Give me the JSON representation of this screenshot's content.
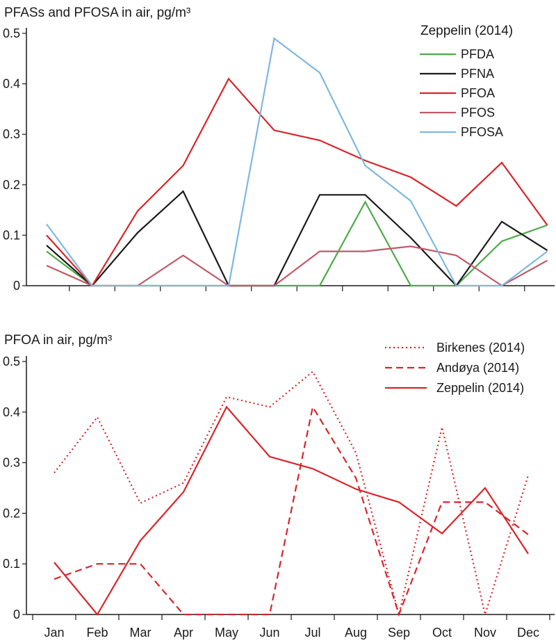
{
  "chart_data": [
    {
      "type": "line",
      "title": "PFASs and PFOSA in air, pg/m³",
      "legend_title": "Zeppelin (2014)",
      "legend_position": "top-right",
      "categories": [
        "Jan",
        "Feb",
        "Mar",
        "Apr",
        "May",
        "Jun",
        "Jul",
        "Aug",
        "Sep",
        "Oct",
        "Nov",
        "Dec"
      ],
      "ylim": [
        0,
        0.5
      ],
      "yticks": [
        "0",
        "0.1",
        "0.2",
        "0.3",
        "0.4",
        "0.5"
      ],
      "show_x_tick_labels": false,
      "grid": false,
      "series": [
        {
          "name": "PFDA",
          "color": "#4cab48",
          "dash": "solid",
          "values": [
            0.068,
            0,
            0,
            0,
            0,
            0,
            0,
            0.166,
            0,
            0,
            0.088,
            0.12
          ]
        },
        {
          "name": "PFNA",
          "color": "#1a1a1a",
          "dash": "solid",
          "values": [
            0.08,
            0,
            0.105,
            0.187,
            0,
            0,
            0.18,
            0.18,
            0.095,
            0,
            0.127,
            0.07
          ]
        },
        {
          "name": "PFOA",
          "color": "#d7252a",
          "dash": "solid",
          "values": [
            0.1,
            0,
            0.148,
            0.238,
            0.41,
            0.308,
            0.288,
            0.248,
            0.215,
            0.158,
            0.244,
            0.12
          ]
        },
        {
          "name": "PFOS",
          "color": "#c05a68",
          "dash": "solid",
          "values": [
            0.04,
            0,
            0,
            0.06,
            0,
            0,
            0.068,
            0.068,
            0.078,
            0.06,
            0,
            0.05
          ]
        },
        {
          "name": "PFOSA",
          "color": "#7db8e0",
          "dash": "solid",
          "values": [
            0.122,
            0,
            0,
            0,
            0,
            0.49,
            0.422,
            0.238,
            0.168,
            0,
            0,
            0.068
          ]
        }
      ]
    },
    {
      "type": "line",
      "title": "PFOA in air, pg/m³",
      "legend_title": "",
      "legend_position": "top-right",
      "categories": [
        "Jan",
        "Feb",
        "Mar",
        "Apr",
        "May",
        "Jun",
        "Jul",
        "Aug",
        "Sep",
        "Oct",
        "Nov",
        "Dec"
      ],
      "ylim": [
        0,
        0.5
      ],
      "yticks": [
        "0",
        "0.1",
        "0.2",
        "0.3",
        "0.4",
        "0.5"
      ],
      "show_x_tick_labels": true,
      "grid": false,
      "series": [
        {
          "name": "Birkenes (2014)",
          "color": "#d7252a",
          "dash": "dotted",
          "values": [
            0.28,
            0.39,
            0.22,
            0.26,
            0.43,
            0.41,
            0.48,
            0.32,
            0,
            0.37,
            0,
            0.275
          ]
        },
        {
          "name": "Andøya (2014)",
          "color": "#d7252a",
          "dash": "dashed",
          "values": [
            0.07,
            0.1,
            0.1,
            0,
            0,
            0,
            0.41,
            0.27,
            0,
            0.222,
            0.222,
            0.158
          ]
        },
        {
          "name": "Zeppelin (2014)",
          "color": "#d7252a",
          "dash": "solid",
          "values": [
            0.103,
            0,
            0.146,
            0.242,
            0.41,
            0.312,
            0.288,
            0.248,
            0.222,
            0.16,
            0.25,
            0.12
          ]
        }
      ]
    }
  ]
}
